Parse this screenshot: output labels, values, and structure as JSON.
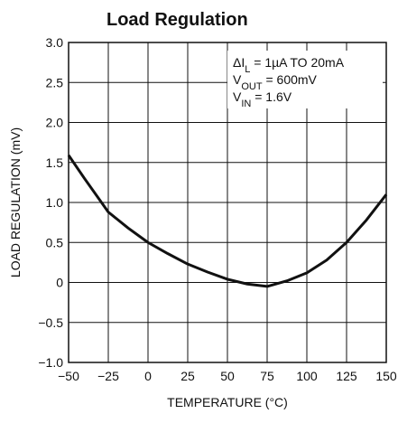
{
  "chart_data": {
    "type": "line",
    "title": "Load Regulation",
    "xlabel": "TEMPERATURE (°C)",
    "ylabel": "LOAD REGULATION (mV)",
    "annotations": [
      [
        "ΔI",
        "L",
        " = 1µA TO 20mA"
      ],
      [
        "V",
        "OUT",
        " = 600mV"
      ],
      [
        "V",
        "IN",
        " = 1.6V"
      ]
    ],
    "x": [
      -50,
      -40,
      -25,
      -12.5,
      0,
      12.5,
      25,
      37.5,
      50,
      62.5,
      75,
      87.5,
      100,
      112.5,
      125,
      137.5,
      150
    ],
    "series": [
      {
        "color": "#111111",
        "values": [
          1.59,
          1.3,
          0.88,
          0.68,
          0.5,
          0.36,
          0.23,
          0.13,
          0.04,
          -0.02,
          -0.05,
          0.02,
          0.12,
          0.28,
          0.5,
          0.78,
          1.1
        ]
      }
    ],
    "xlim": [
      -50,
      150
    ],
    "ylim": [
      -1,
      3
    ],
    "xticks": [
      {
        "value": -50,
        "label": "−50"
      },
      {
        "value": -25,
        "label": "−25"
      },
      0,
      25,
      50,
      75,
      100,
      125,
      150
    ],
    "yticks": [
      {
        "value": -1,
        "label": "−1.0"
      },
      {
        "value": -0.5,
        "label": "−0.5"
      },
      0,
      0.5,
      {
        "value": 1,
        "label": "1.0"
      },
      1.5,
      {
        "value": 2,
        "label": "2.0"
      },
      2.5,
      {
        "value": 3,
        "label": "3.0"
      }
    ],
    "grid": true
  }
}
